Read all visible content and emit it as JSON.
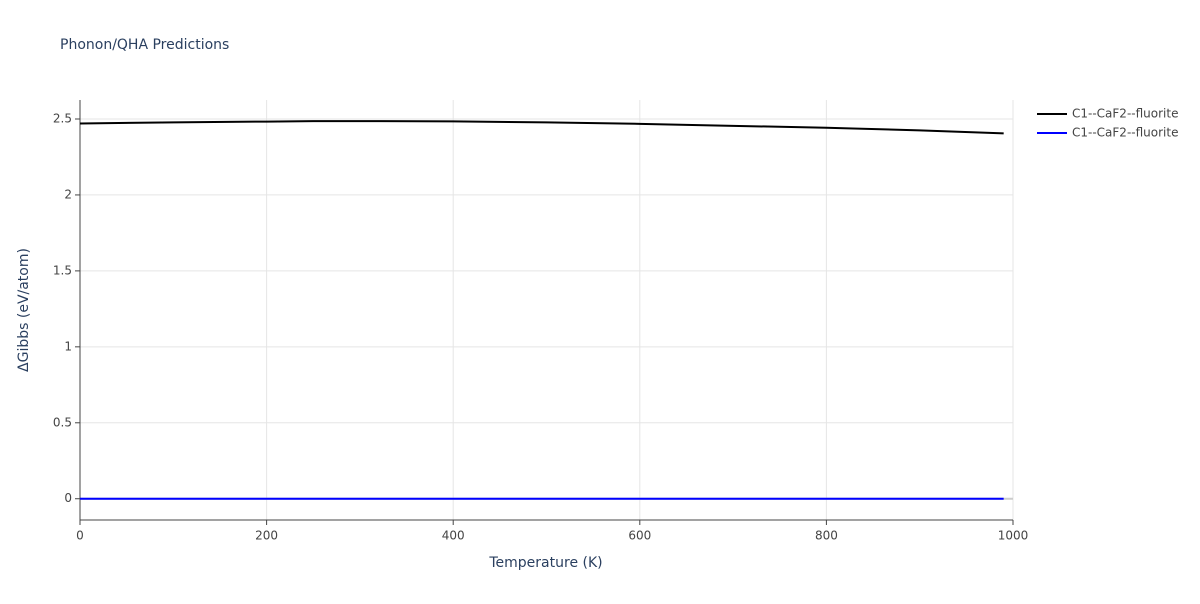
{
  "chart_data": {
    "type": "line",
    "title": "Phonon/QHA Predictions",
    "x_label": "Temperature (K)",
    "y_label": "ΔGibbs (eV/atom)",
    "x": [
      0,
      100,
      200,
      250,
      300,
      400,
      500,
      600,
      700,
      800,
      900,
      990
    ],
    "series": [
      {
        "name": "C1--CaF2--fluorite",
        "color": "#000000",
        "values": [
          2.47,
          2.478,
          2.483,
          2.486,
          2.486,
          2.484,
          2.478,
          2.468,
          2.455,
          2.442,
          2.425,
          2.405
        ]
      },
      {
        "name": "C1--CaF2--fluorite",
        "color": "#0000ff",
        "values": [
          0,
          0,
          0,
          0,
          0,
          0,
          0,
          0,
          0,
          0,
          0,
          0
        ]
      }
    ],
    "xlim": [
      0,
      1000
    ],
    "xticks": [
      0,
      200,
      400,
      600,
      800,
      1000
    ],
    "ylim": [
      -0.14,
      2.625
    ],
    "yticks": [
      0,
      0.5,
      1,
      1.5,
      2,
      2.5
    ],
    "grid": true,
    "legend": "right"
  }
}
